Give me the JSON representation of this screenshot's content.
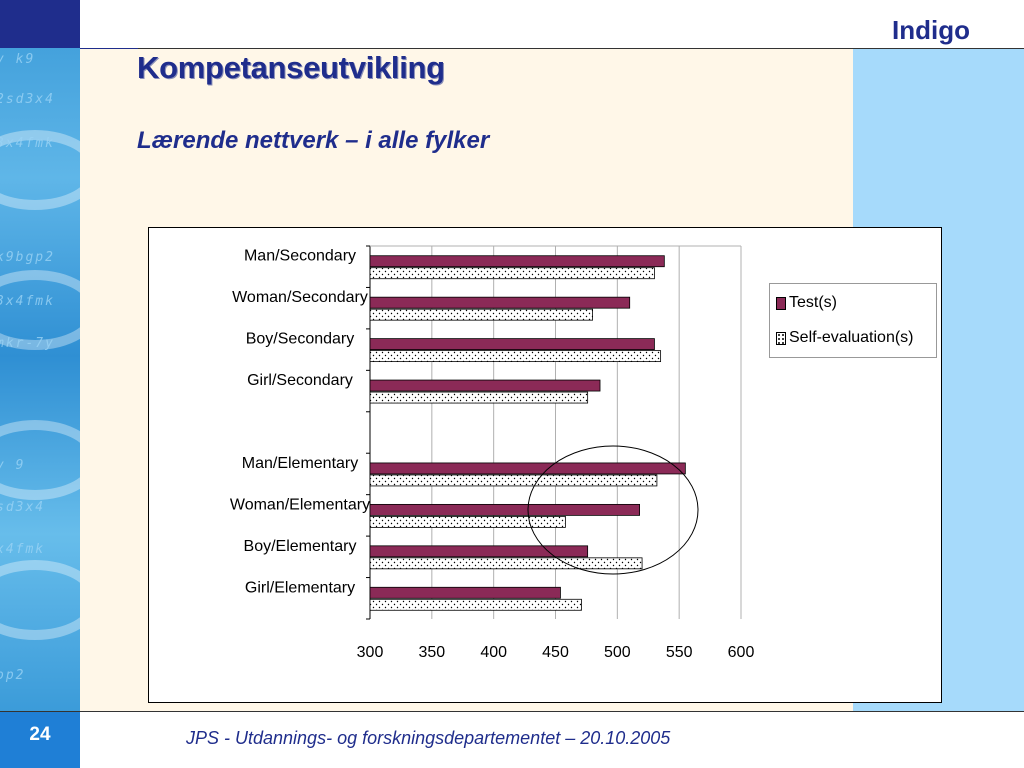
{
  "header": {
    "brand": "Indigo"
  },
  "slide": {
    "title": "Kompetanseutvikling",
    "subtitle": "Lærende nettverk – i alle fylker"
  },
  "footer": {
    "page_number": "24",
    "text": "JPS - Utdannings- og forskningsdepartementet – 20.10.2005"
  },
  "colors": {
    "test": "#8b2a57",
    "self": "#ffffff",
    "title": "#1f2d8c",
    "accent_blue": "#1f7fd6"
  },
  "chart_data": {
    "type": "bar",
    "orientation": "horizontal",
    "categories": [
      "Man/Secondary",
      "Woman/Secondary",
      "Boy/Secondary",
      "Girl/Secondary",
      "",
      "Man/Elementary",
      "Woman/Elementary",
      "Boy/Elementary",
      "Girl/Elementary"
    ],
    "series": [
      {
        "name": "Test(s)",
        "values": [
          538,
          510,
          530,
          486,
          null,
          555,
          518,
          476,
          454
        ]
      },
      {
        "name": "Self-evaluation(s)",
        "values": [
          530,
          480,
          535,
          476,
          null,
          532,
          458,
          520,
          471
        ]
      }
    ],
    "xlim": [
      300,
      600
    ],
    "xticks": [
      "300",
      "350",
      "400",
      "450",
      "500",
      "550",
      "600"
    ],
    "grid": true,
    "legend": "right",
    "annotation": "circle around Elementary bars near 450–550"
  }
}
